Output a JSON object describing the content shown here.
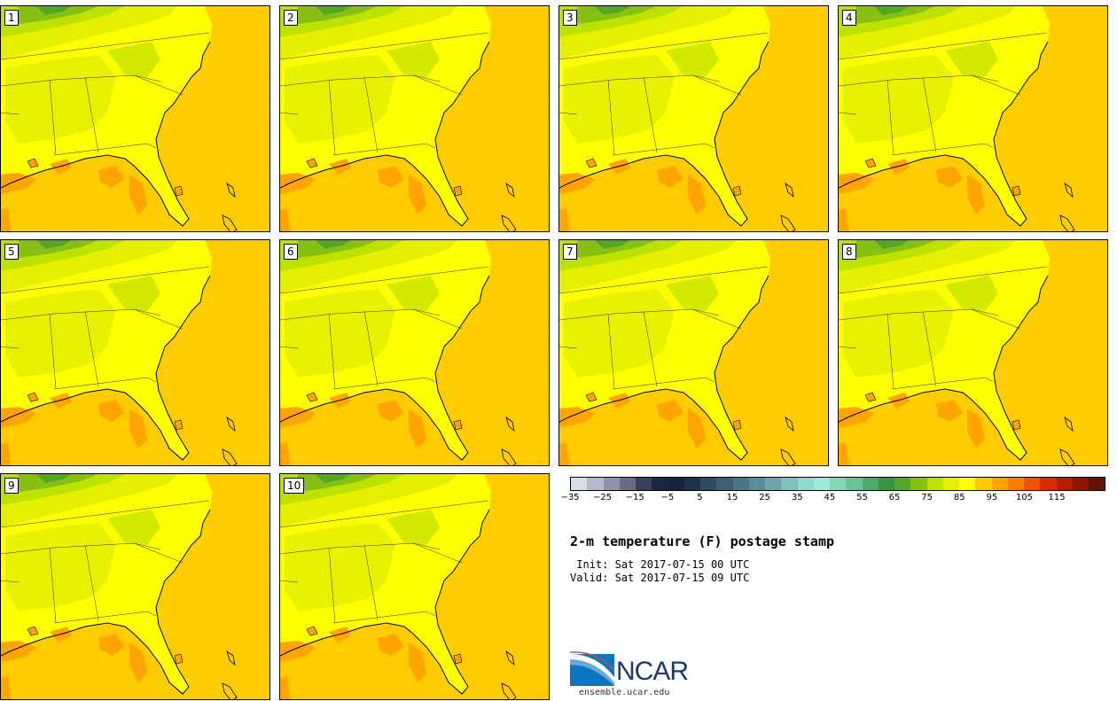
{
  "panels": [
    {
      "label": "1"
    },
    {
      "label": "2"
    },
    {
      "label": "3"
    },
    {
      "label": "4"
    },
    {
      "label": "5"
    },
    {
      "label": "6"
    },
    {
      "label": "7"
    },
    {
      "label": "8"
    },
    {
      "label": "9"
    },
    {
      "label": "10"
    }
  ],
  "colorbar": {
    "colors": [
      "#d9dde8",
      "#b4b8c8",
      "#8e92a8",
      "#686c86",
      "#3a3f5e",
      "#1a2443",
      "#14223e",
      "#1d3250",
      "#2e4a63",
      "#3c5f75",
      "#4c7587",
      "#5a8c99",
      "#6ca5aa",
      "#80c0bc",
      "#8fd9cd",
      "#9ee9dc",
      "#86d7b3",
      "#6cc292",
      "#4fa96a",
      "#3b9540",
      "#56a526",
      "#86c012",
      "#bde100",
      "#e4f000",
      "#ffff00",
      "#ffc800",
      "#ffa400",
      "#ff7e00",
      "#f45000",
      "#d82c00",
      "#b51c00",
      "#8e1600",
      "#651200"
    ],
    "tick_labels": [
      "−35",
      "−25",
      "−15",
      "−5",
      "5",
      "15",
      "25",
      "35",
      "45",
      "55",
      "65",
      "75",
      "85",
      "95",
      "105",
      "115"
    ]
  },
  "title": "2-m temperature (F) postage stamp",
  "init_text": " Init: Sat 2017-07-15 00 UTC",
  "valid_text": "Valid: Sat 2017-07-15 09 UTC",
  "logo": {
    "text": "NCAR",
    "url": "ensemble.ucar.edu"
  }
}
